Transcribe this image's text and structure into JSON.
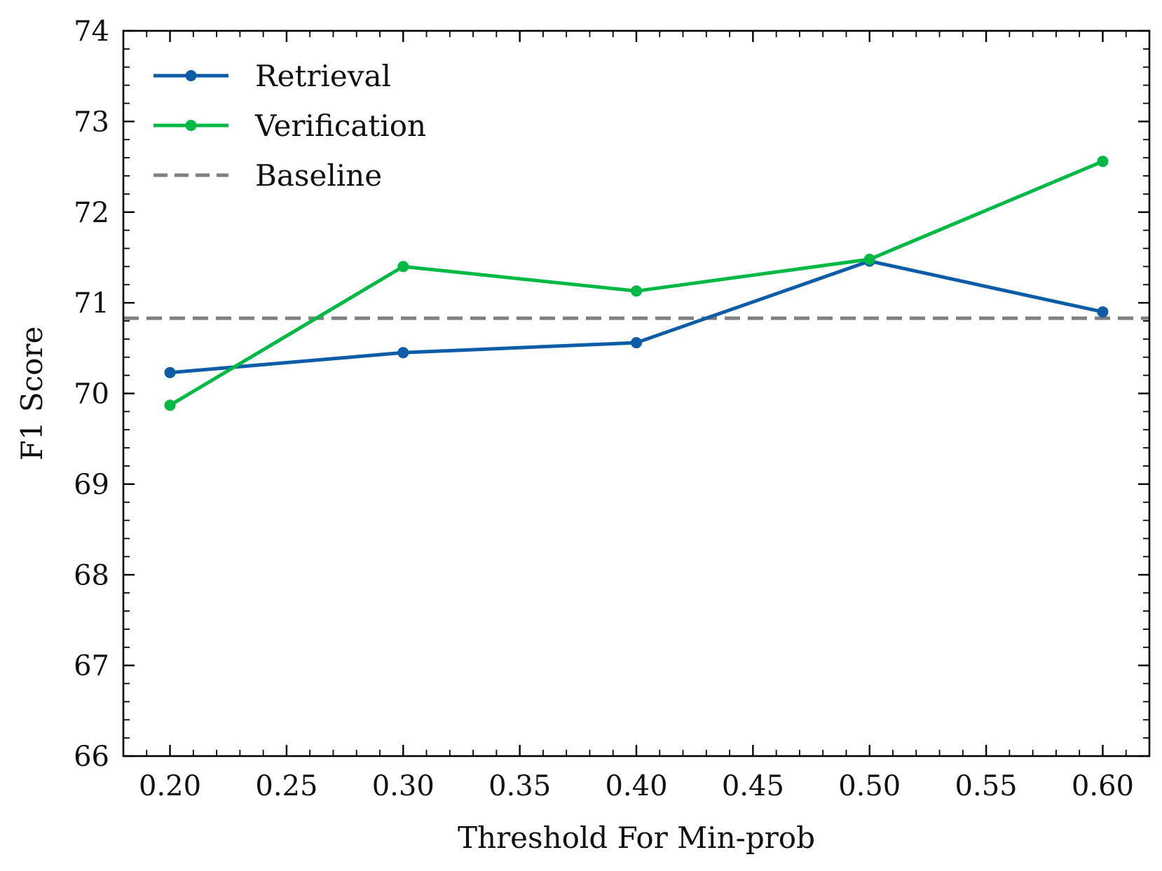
{
  "chart_data": {
    "type": "line",
    "title": "",
    "xlabel": "Threshold For Min-prob",
    "ylabel": "F1 Score",
    "xlim": [
      0.18,
      0.62
    ],
    "ylim": [
      66,
      74
    ],
    "xticks": [
      0.2,
      0.25,
      0.3,
      0.35,
      0.4,
      0.45,
      0.5,
      0.55,
      0.6
    ],
    "xtick_labels": [
      "0.20",
      "0.25",
      "0.30",
      "0.35",
      "0.40",
      "0.45",
      "0.50",
      "0.55",
      "0.60"
    ],
    "yticks": [
      66,
      67,
      68,
      69,
      70,
      71,
      72,
      73,
      74
    ],
    "ytick_labels": [
      "66",
      "67",
      "68",
      "69",
      "70",
      "71",
      "72",
      "73",
      "74"
    ],
    "x": [
      0.2,
      0.3,
      0.4,
      0.5,
      0.6
    ],
    "series": [
      {
        "name": "Retrieval",
        "color": "#0C5DA5",
        "values": [
          70.23,
          70.45,
          70.56,
          71.46,
          70.9
        ]
      },
      {
        "name": "Verification",
        "color": "#00B945",
        "values": [
          69.87,
          71.4,
          71.13,
          71.48,
          72.56
        ]
      }
    ],
    "baseline": {
      "name": "Baseline",
      "color": "#808080",
      "value": 70.83
    },
    "legend": [
      "Retrieval",
      "Verification",
      "Baseline"
    ],
    "legend_position": "top-left",
    "grid": false
  }
}
